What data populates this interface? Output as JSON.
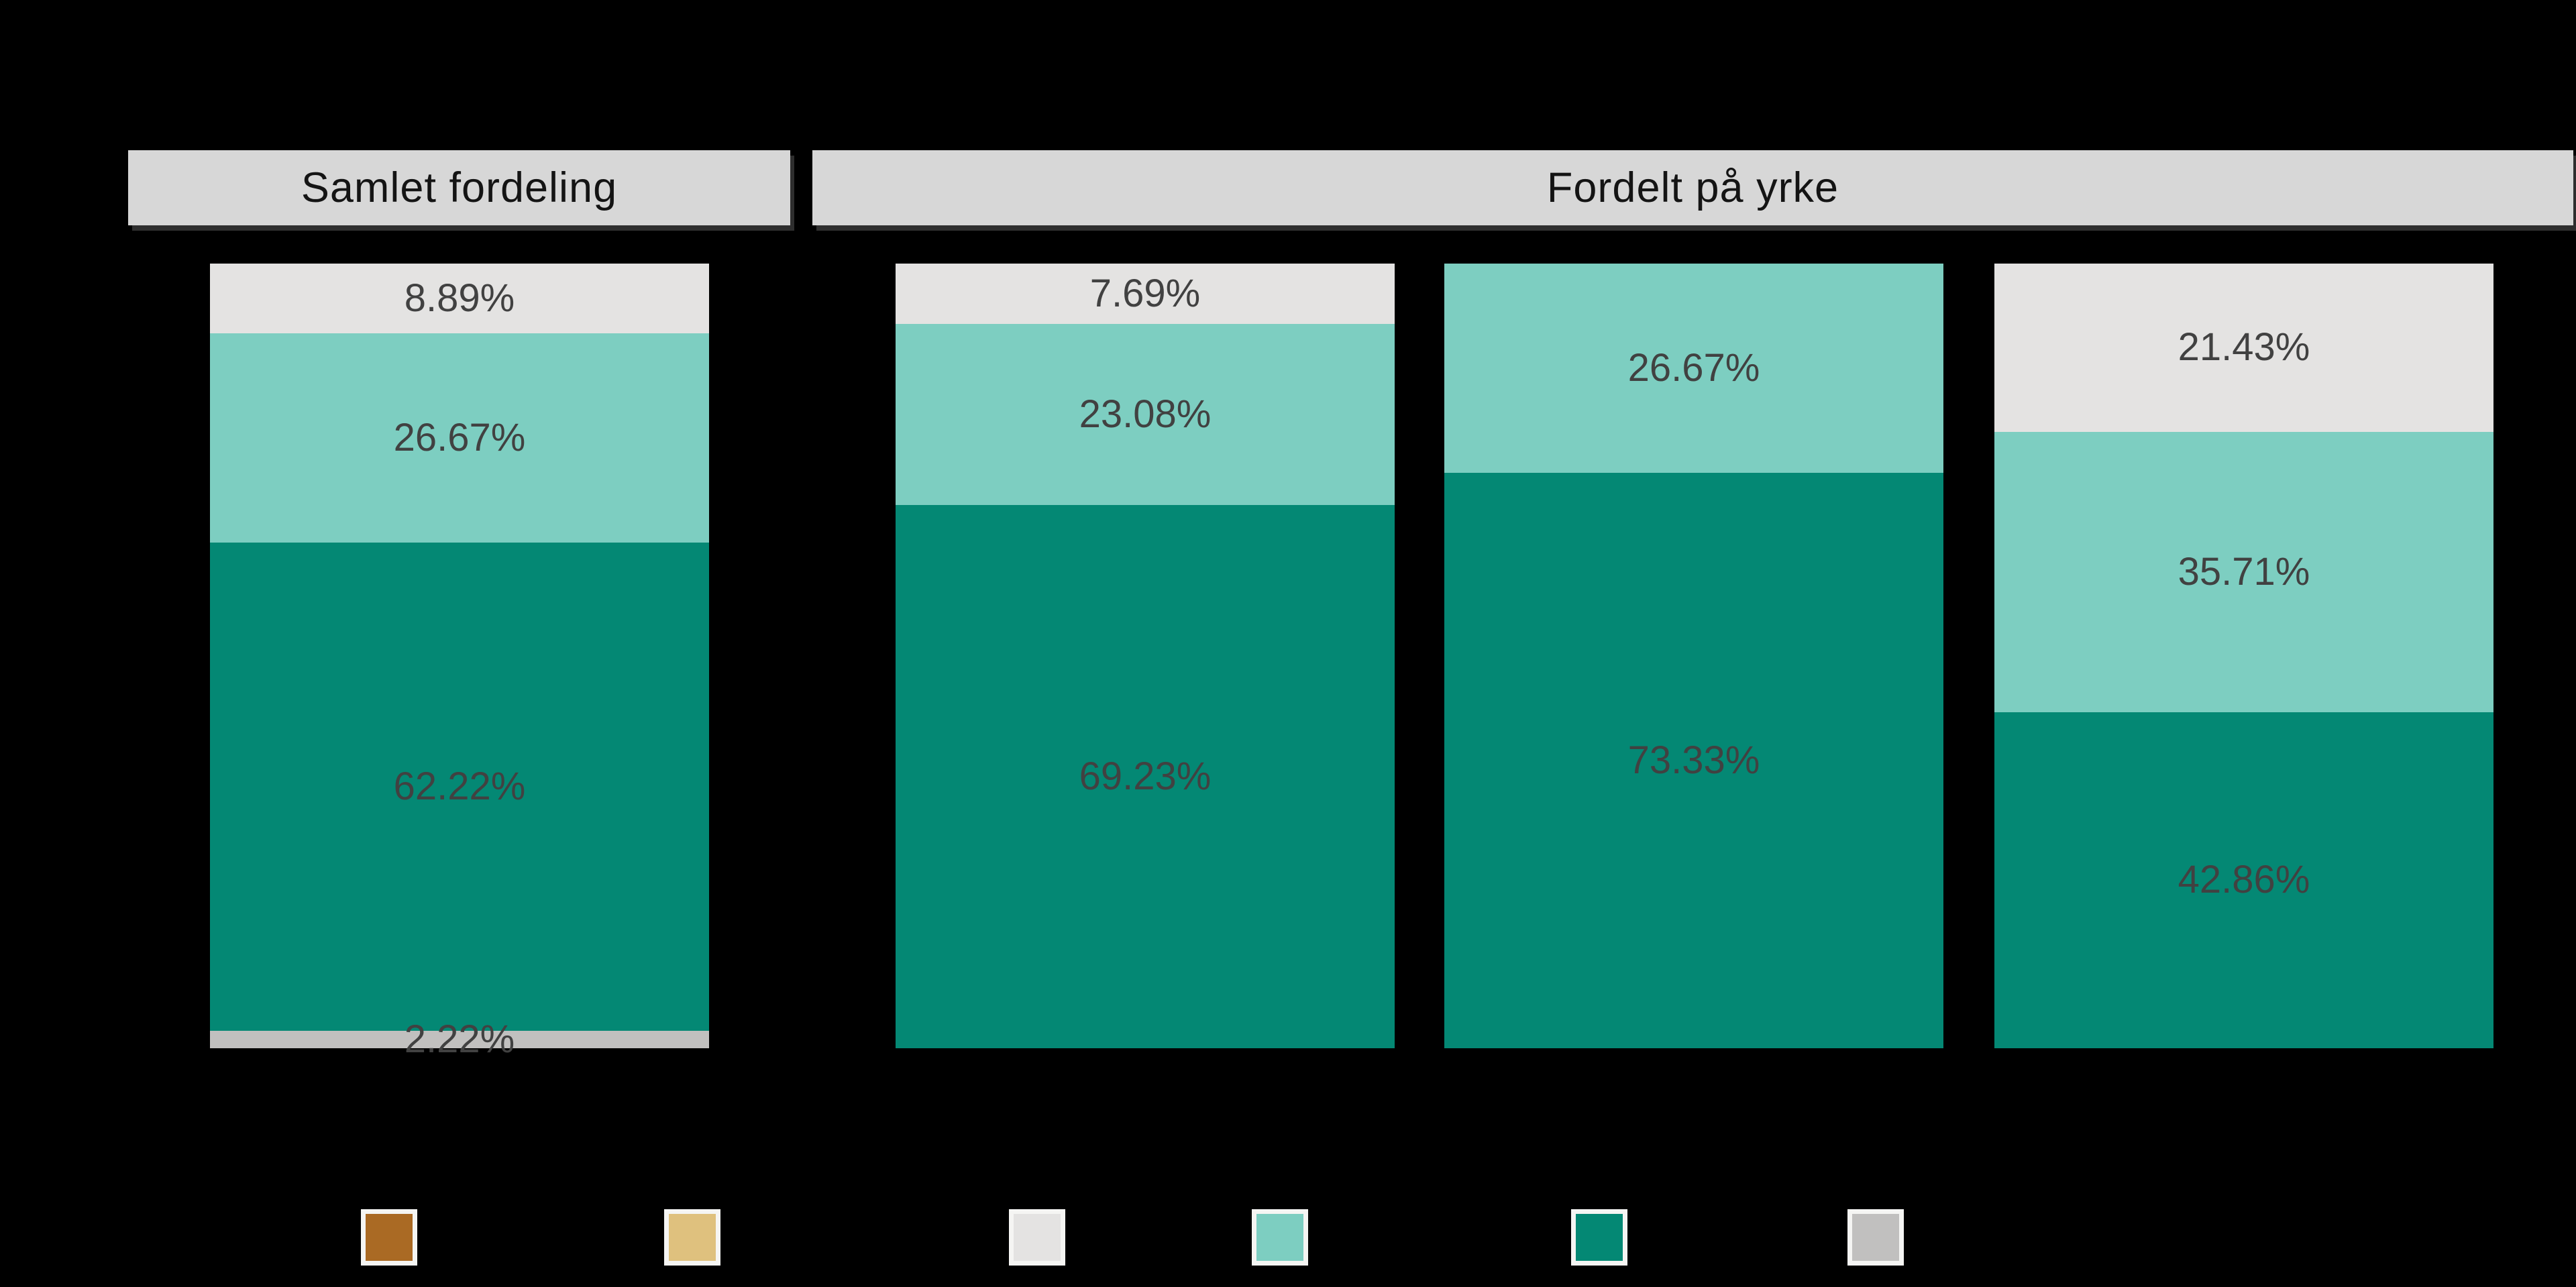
{
  "app": {
    "background": "#000000"
  },
  "facets": [
    {
      "label": "Samlet fordeling"
    },
    {
      "label": "Fordelt på yrke"
    }
  ],
  "palette": {
    "brown": "#AA6A24",
    "tan": "#DFC17E",
    "light_gray": "#E4E3E2",
    "light_teal": "#7DCEC1",
    "dark_teal": "#048874",
    "medium_gray": "#C1C0BF",
    "strip_bg": "#D7D7D7",
    "strip_text": "#141414",
    "label_text": "#414141",
    "legend_frame": "#F5F5F3"
  },
  "chart_data": {
    "type": "bar",
    "subtype": "stacked-100-percent-columns",
    "orientation": "vertical",
    "value_format": "percent",
    "grid": false,
    "axis_labels_visible": false,
    "legend_position": "bottom",
    "facets": [
      {
        "label": "Samlet fordeling",
        "bars": [
          {
            "segments": [
              {
                "color": "light_gray",
                "value": 8.89,
                "label": "8.89%"
              },
              {
                "color": "light_teal",
                "value": 26.67,
                "label": "26.67%"
              },
              {
                "color": "dark_teal",
                "value": 62.22,
                "label": "62.22%"
              },
              {
                "color": "medium_gray",
                "value": 2.22,
                "label": "2.22%"
              }
            ]
          }
        ]
      },
      {
        "label": "Fordelt på yrke",
        "bars": [
          {
            "segments": [
              {
                "color": "light_gray",
                "value": 7.69,
                "label": "7.69%"
              },
              {
                "color": "light_teal",
                "value": 23.08,
                "label": "23.08%"
              },
              {
                "color": "dark_teal",
                "value": 69.23,
                "label": "69.23%"
              }
            ]
          },
          {
            "segments": [
              {
                "color": "light_teal",
                "value": 26.67,
                "label": "26.67%"
              },
              {
                "color": "dark_teal",
                "value": 73.33,
                "label": "73.33%"
              }
            ]
          },
          {
            "segments": [
              {
                "color": "light_gray",
                "value": 21.43,
                "label": "21.43%"
              },
              {
                "color": "light_teal",
                "value": 35.71,
                "label": "35.71%"
              },
              {
                "color": "dark_teal",
                "value": 42.86,
                "label": "42.86%"
              }
            ]
          }
        ]
      }
    ],
    "legend": {
      "labels_visible": false,
      "swatches": [
        {
          "color": "brown"
        },
        {
          "color": "tan"
        },
        {
          "color": "light_gray"
        },
        {
          "color": "light_teal"
        },
        {
          "color": "dark_teal"
        },
        {
          "color": "medium_gray"
        }
      ]
    }
  }
}
